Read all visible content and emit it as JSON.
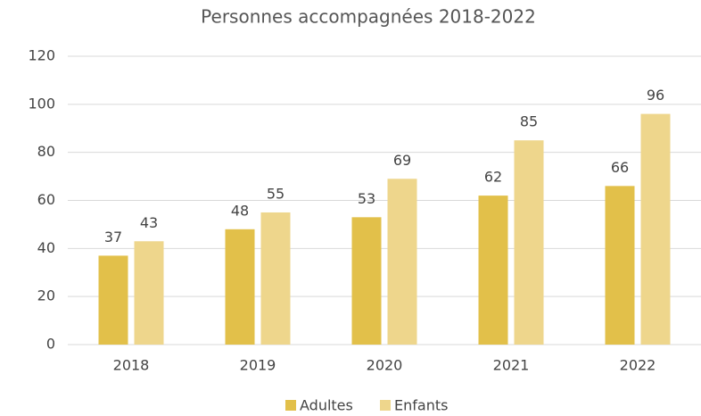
{
  "chart_data": {
    "type": "bar",
    "title": "Personnes accompagnées 2018-2022",
    "categories": [
      "2018",
      "2019",
      "2020",
      "2021",
      "2022"
    ],
    "series": [
      {
        "name": "Adultes",
        "color": "#e2c04a",
        "values": [
          37,
          48,
          53,
          62,
          66
        ]
      },
      {
        "name": "Enfants",
        "color": "#eed68c",
        "values": [
          43,
          55,
          69,
          85,
          96
        ]
      }
    ],
    "ylim": [
      0,
      120
    ],
    "yticks": [
      0,
      20,
      40,
      60,
      80,
      100,
      120
    ],
    "grid": true,
    "legend": "bottom"
  }
}
